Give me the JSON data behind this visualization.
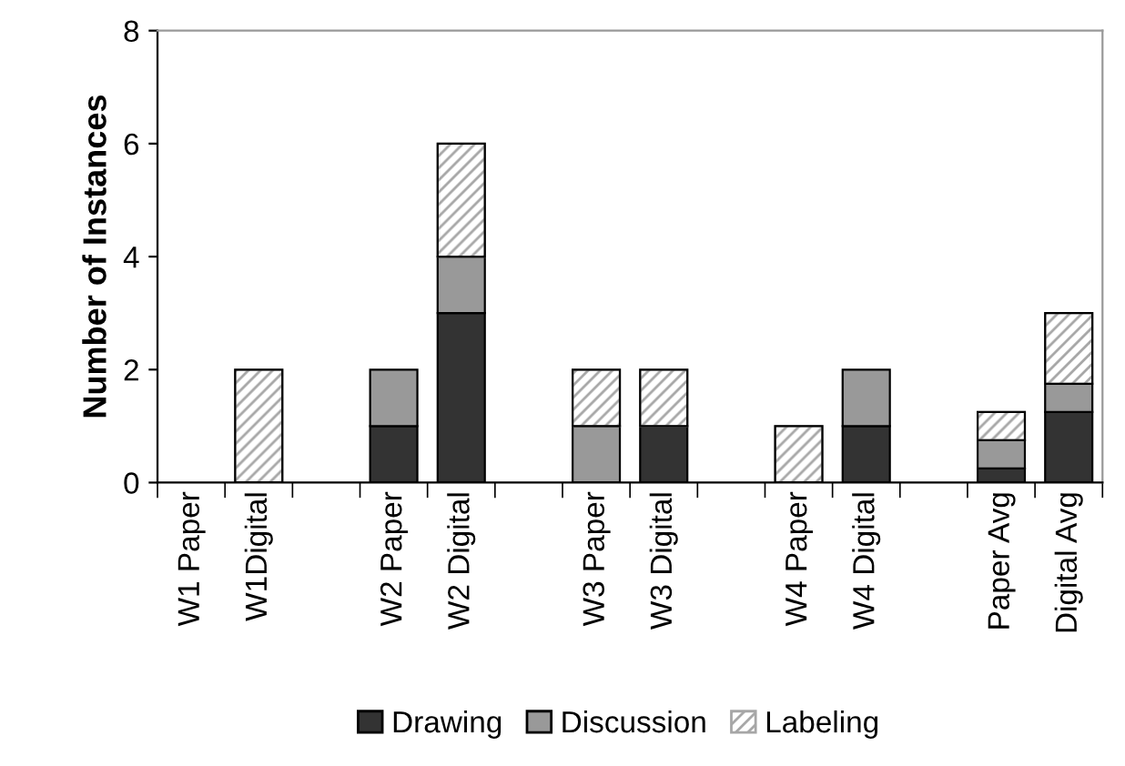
{
  "chart_data": {
    "type": "bar",
    "stacked": true,
    "ylabel": "Number of Instances",
    "categories": [
      "W1 Paper",
      "W1Digital",
      null,
      "W2 Paper",
      "W2 Digital",
      null,
      "W3 Paper",
      "W3 Digital",
      null,
      "W4 Paper",
      "W4 Digital",
      null,
      "Paper Avg",
      "Digital Avg"
    ],
    "series": [
      {
        "name": "Drawing",
        "color": "#333333",
        "values": [
          0,
          0,
          null,
          1,
          3,
          null,
          0,
          1,
          null,
          0,
          1,
          null,
          0.25,
          1.25
        ]
      },
      {
        "name": "Discussion",
        "color": "#999999",
        "values": [
          0,
          0,
          null,
          1,
          1,
          null,
          1,
          0,
          null,
          0,
          1,
          null,
          0.5,
          0.5
        ]
      },
      {
        "name": "Labeling",
        "color": "#a6a6a6",
        "values": [
          0,
          2,
          null,
          0,
          2,
          null,
          1,
          1,
          null,
          1,
          0,
          null,
          0.5,
          1.25
        ]
      }
    ],
    "ylim": [
      0,
      8
    ],
    "yticks": [
      0,
      2,
      4,
      6,
      8
    ],
    "grid": false,
    "legend": "bottom"
  }
}
